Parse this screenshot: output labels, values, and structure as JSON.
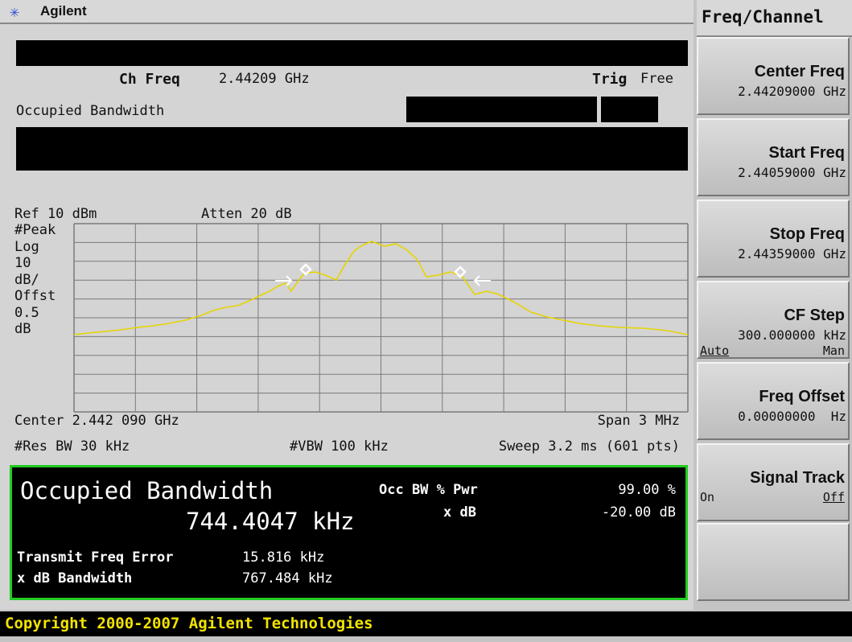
{
  "header": {
    "brand": "Agilent",
    "menu_title": "Freq/Channel"
  },
  "status": {
    "ch_freq_label": "Ch Freq",
    "ch_freq_value": "2.44209 GHz",
    "trig_label": "Trig",
    "trig_value": "Free",
    "measurement": "Occupied Bandwidth"
  },
  "plot": {
    "ref": "Ref 10 dBm",
    "atten": "Atten 20 dB",
    "scale_lines": [
      "#Peak",
      "Log",
      "10",
      "dB/",
      "Offst",
      "0.5",
      "dB"
    ],
    "center": "Center 2.442 090 GHz",
    "span": "Span 3 MHz",
    "res_bw": "#Res BW 30 kHz",
    "vbw": "#VBW 100 kHz",
    "sweep": "Sweep 3.2 ms (601 pts)"
  },
  "results": {
    "title": "Occupied Bandwidth",
    "value": "744.4047 kHz",
    "occ_label": "Occ BW % Pwr",
    "occ_value": "99.00 %",
    "xdb_label": "x dB",
    "xdb_value": "-20.00 dB",
    "tfe_label": "Transmit Freq Error",
    "tfe_value": "15.816 kHz",
    "xbw_label": "x dB Bandwidth",
    "xbw_value": "767.484 kHz"
  },
  "softkeys": [
    {
      "label": "Center Freq",
      "value": "2.44209000 GHz"
    },
    {
      "label": "Start Freq",
      "value": "2.44059000 GHz"
    },
    {
      "label": "Stop Freq",
      "value": "2.44359000 GHz"
    },
    {
      "label": "CF Step",
      "value": "300.000000 kHz",
      "options": [
        "Auto",
        "Man"
      ]
    },
    {
      "label": "Freq Offset",
      "value": "0.00000000  Hz"
    },
    {
      "label": "Signal Track",
      "options": [
        "On",
        "Off"
      ]
    }
  ],
  "footer": "Copyright 2000-2007 Agilent Technologies"
}
